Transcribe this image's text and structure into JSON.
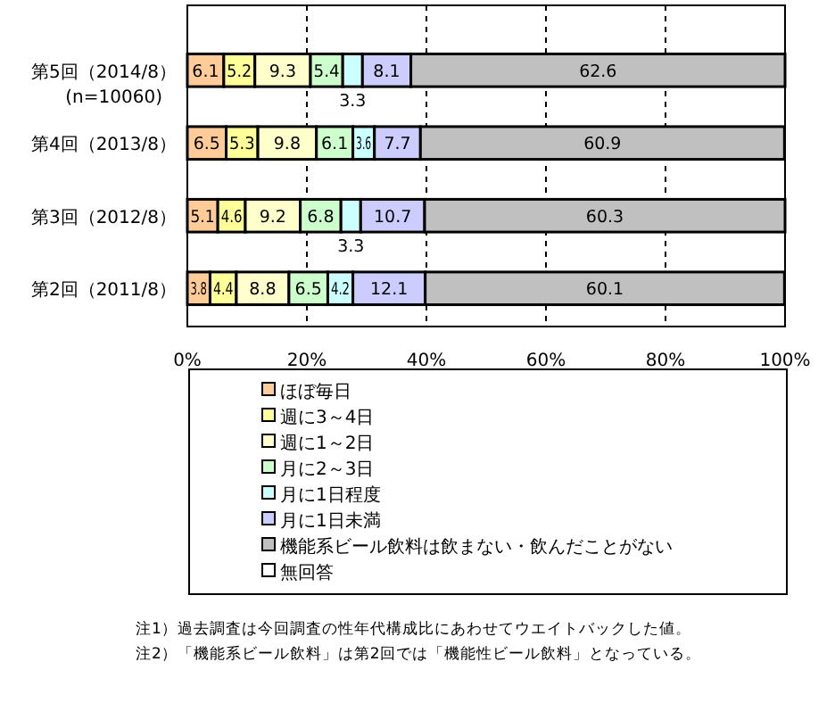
{
  "chart_data": {
    "type": "bar",
    "orientation": "horizontal",
    "stacked": true,
    "categories": [
      "第5回（2014/8）\n(n=10060)",
      "第4回（2013/8）",
      "第3回（2012/8）",
      "第2回（2011/8）"
    ],
    "series": [
      {
        "name": "ほぼ毎日",
        "color": "#ffcc99",
        "values": [
          6.1,
          6.5,
          5.1,
          3.8
        ],
        "value_labels": [
          "6.1",
          "6.5",
          "5.1",
          "3.8"
        ]
      },
      {
        "name": "週に3～4日",
        "color": "#ffff99",
        "values": [
          5.2,
          5.3,
          4.6,
          4.4
        ],
        "value_labels": [
          "5.2",
          "5.3",
          "4.6",
          "4.4"
        ]
      },
      {
        "name": "週に1～2日",
        "color": "#ffffcc",
        "values": [
          9.3,
          9.8,
          9.2,
          8.8
        ],
        "value_labels": [
          "9.3",
          "9.8",
          "9.2",
          "8.8"
        ]
      },
      {
        "name": "月に2～3日",
        "color": "#ccffcc",
        "values": [
          5.4,
          6.1,
          6.8,
          6.5
        ],
        "value_labels": [
          "5.4",
          "6.1",
          "6.8",
          "6.5"
        ]
      },
      {
        "name": "月に1日程度",
        "color": "#ccffff",
        "values": [
          3.3,
          3.6,
          3.3,
          4.2
        ],
        "value_labels": [
          "3.3",
          "3.6",
          "3.3",
          "4.2"
        ]
      },
      {
        "name": "月に1日未満",
        "color": "#ccccff",
        "values": [
          8.1,
          7.7,
          10.7,
          12.1
        ],
        "value_labels": [
          "8.1",
          "7.7",
          "10.7",
          "12.1"
        ]
      },
      {
        "name": "機能系ビール飲料は飲まない・飲んだことがない",
        "color": "#c0c0c0",
        "values": [
          62.6,
          60.9,
          60.3,
          60.1
        ],
        "value_labels": [
          "62.6",
          "60.9",
          "60.3",
          "60.1"
        ]
      },
      {
        "name": "無回答",
        "color": "#ffffff",
        "values": [
          0,
          0,
          0,
          0
        ],
        "value_labels": [
          null,
          null,
          null,
          null
        ]
      }
    ],
    "xlim": [
      0,
      100
    ],
    "xticks": [
      {
        "value": 0,
        "label": "0%"
      },
      {
        "value": 20,
        "label": "20%"
      },
      {
        "value": 40,
        "label": "40%"
      },
      {
        "value": 60,
        "label": "60%"
      },
      {
        "value": 80,
        "label": "80%"
      },
      {
        "value": 100,
        "label": "100%"
      }
    ],
    "grid": "x",
    "legend": "bottom",
    "annotations": [
      "注1）過去調査は今回調査の性年代構成比にあわせてウエイトバックした値。",
      "注2）「機能系ビール飲料」は第2回では「機能性ビール飲料」となっている。"
    ]
  }
}
